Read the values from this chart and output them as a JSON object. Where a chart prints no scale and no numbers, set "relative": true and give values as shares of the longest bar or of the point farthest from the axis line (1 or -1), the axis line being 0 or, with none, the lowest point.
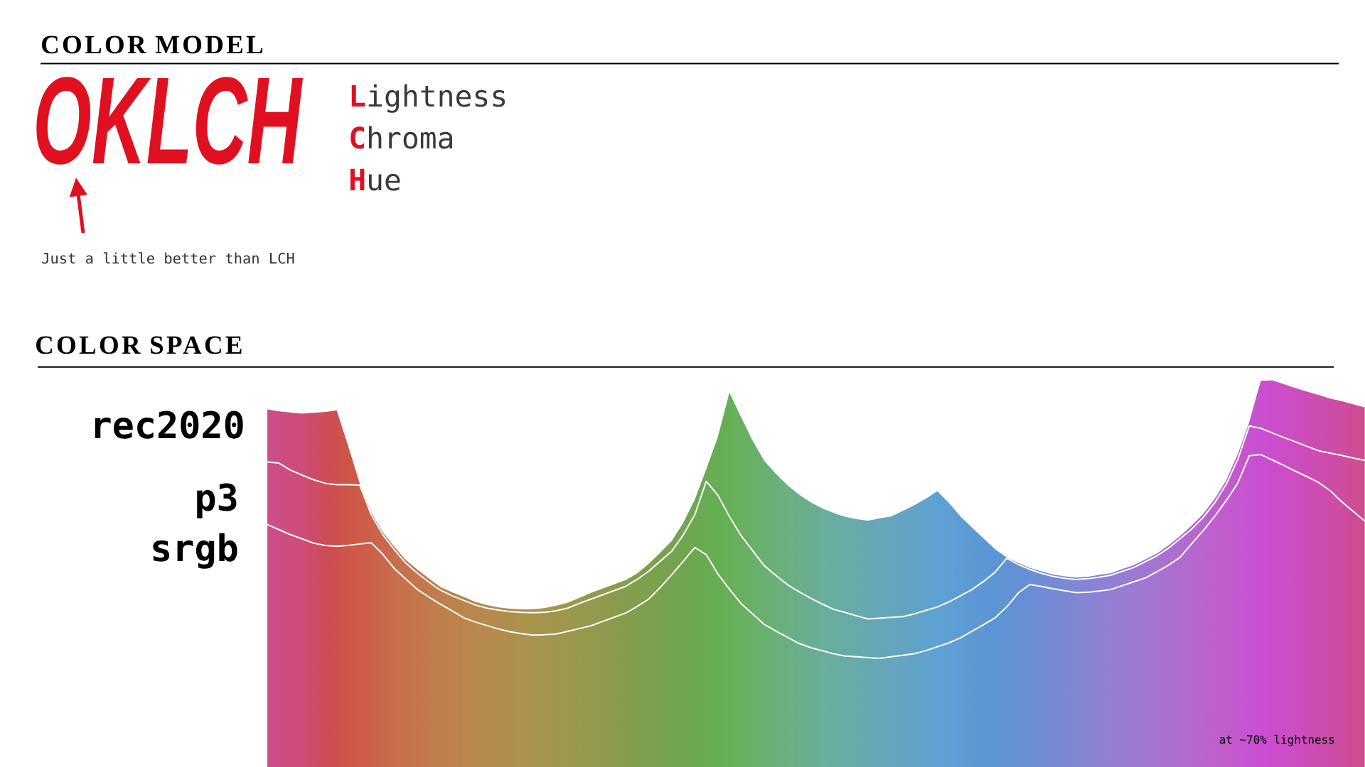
{
  "chart_data": [
    {
      "type": "other",
      "title": "COLOR MODEL",
      "color": "#e01020",
      "annotations": [
        "OKLCH",
        "Just a little better than LCH",
        "**L**ightness",
        "**C**hroma",
        "**H**ue"
      ]
    },
    {
      "type": "area",
      "title": "COLOR SPACE",
      "relative": true,
      "categories": [
        null,
        null,
        null,
        null,
        null,
        null,
        null,
        null,
        null,
        null,
        null,
        null,
        null,
        null,
        null,
        null,
        null,
        null,
        null,
        null,
        null,
        null,
        null,
        null,
        null,
        null,
        null,
        null,
        null,
        null,
        null,
        null,
        null,
        null,
        null,
        null,
        null,
        null,
        null,
        null,
        null,
        null,
        null,
        null,
        null,
        null,
        null,
        null,
        null,
        null,
        null,
        null,
        null,
        null,
        null,
        null,
        null,
        null,
        null,
        null,
        null,
        null,
        null,
        null,
        null,
        null,
        null,
        null,
        null,
        null,
        null,
        null,
        null,
        null,
        null,
        null,
        null,
        null,
        null,
        null,
        null,
        null,
        null,
        null,
        null,
        null,
        null,
        null,
        null,
        null,
        null,
        null,
        null,
        null,
        null,
        null
      ],
      "series": [
        {
          "name": "rec2020",
          "type": "area",
          "colors": [
            "#e8338a",
            "#e83282",
            "#e83178",
            "#e8316c",
            "#e8305a",
            "#e83044",
            "#e83530",
            "#e83e2c",
            "#e8462c",
            "#e64e2c",
            "#e4562d",
            "#e25e2e",
            "#df652e",
            "#dc6b2e",
            "#d9712e",
            "#d6772e",
            "#d27c2f",
            "#ce812f",
            "#ca852f",
            "#c68930",
            "#c28c30",
            "#bd8f30",
            "#b89230",
            "#b39530",
            "#ae9730",
            "#a89a30",
            "#a29c30",
            "#9c9e30",
            "#959f30",
            "#8fa030",
            "#88a230",
            "#82a431",
            "#7ca632",
            "#76a833",
            "#70aa33",
            "#6aad34",
            "#64b035",
            "#5eb436",
            "#58b838",
            "#54bb3a",
            "#55be40",
            "#58bf4c",
            "#5abf58",
            "#5bbf64",
            "#5cbe70",
            "#5cbd7c",
            "#5bbc88",
            "#5abb94",
            "#59baa0",
            "#58b9a8",
            "#57b8b0",
            "#56b6b8",
            "#55b4c0",
            "#53b2c8",
            "#52b0d0",
            "#50aed8",
            "#4eade0",
            "#4cacea",
            "#4aaaf2",
            "#49a6f2",
            "#48a2f2",
            "#489ef2",
            "#489af2",
            "#4898f2",
            "#4c95f2",
            "#5492f2",
            "#5c8ff2",
            "#648cf2",
            "#6c89f2",
            "#7486f2",
            "#7c83f2",
            "#8480f2",
            "#8c7cf2",
            "#9478f2",
            "#9b74f1",
            "#a270f0",
            "#a96cf0",
            "#b068ef",
            "#b763ee",
            "#be5eed",
            "#c558ec",
            "#cc52eb",
            "#d24cea",
            "#d846ea",
            "#dd40ea",
            "#e13aec",
            "#e434ee",
            "#e632e8",
            "#e731e0",
            "#e831d6",
            "#e830cc",
            "#e830c0",
            "#e830b4",
            "#e830a8",
            "#e8309a",
            "#e8318e"
          ],
          "values": [
            0.925,
            0.92,
            0.917,
            0.914,
            0.916,
            0.918,
            0.922,
            0.83,
            0.733,
            0.658,
            0.607,
            0.569,
            0.535,
            0.51,
            0.487,
            0.465,
            0.452,
            0.44,
            0.427,
            0.419,
            0.413,
            0.409,
            0.408,
            0.408,
            0.411,
            0.417,
            0.425,
            0.437,
            0.45,
            0.461,
            0.472,
            0.483,
            0.5,
            0.525,
            0.554,
            0.584,
            0.631,
            0.691,
            0.77,
            0.853,
            0.968,
            0.905,
            0.844,
            0.792,
            0.759,
            0.729,
            0.705,
            0.685,
            0.669,
            0.657,
            0.647,
            0.641,
            0.637,
            0.643,
            0.648,
            0.662,
            0.677,
            0.694,
            0.713,
            0.683,
            0.648,
            0.619,
            0.591,
            0.563,
            0.542,
            0.528,
            0.515,
            0.506,
            0.498,
            0.493,
            0.49,
            0.492,
            0.497,
            0.501,
            0.512,
            0.522,
            0.537,
            0.552,
            0.573,
            0.597,
            0.624,
            0.654,
            0.693,
            0.741,
            0.808,
            0.892,
            0.999,
            1,
            0.99,
            0.98,
            0.971,
            0.962,
            0.953,
            0.946,
            0.938,
            0.93
          ]
        },
        {
          "name": "p3",
          "type": "line",
          "color": "#ffffff",
          "values": [
            0.789,
            0.786,
            0.768,
            0.755,
            0.743,
            0.734,
            0.73,
            0.73,
            0.729,
            0.652,
            0.601,
            0.562,
            0.527,
            0.501,
            0.478,
            0.457,
            0.443,
            0.431,
            0.419,
            0.411,
            0.406,
            0.402,
            0.4,
            0.399,
            0.4,
            0.404,
            0.411,
            0.423,
            0.434,
            0.445,
            0.456,
            0.467,
            0.485,
            0.506,
            0.532,
            0.558,
            0.6,
            0.652,
            0.739,
            0.703,
            0.648,
            0.599,
            0.56,
            0.521,
            0.496,
            0.472,
            0.454,
            0.437,
            0.422,
            0.408,
            0.4,
            0.391,
            0.383,
            0.385,
            0.387,
            0.389,
            0.396,
            0.405,
            0.414,
            0.427,
            0.443,
            0.459,
            0.48,
            0.504,
            0.54,
            0.524,
            0.511,
            0.501,
            0.493,
            0.488,
            0.485,
            0.487,
            0.491,
            0.496,
            0.506,
            0.516,
            0.531,
            0.546,
            0.566,
            0.59,
            0.615,
            0.645,
            0.683,
            0.731,
            0.795,
            0.882,
            0.876,
            0.864,
            0.852,
            0.841,
            0.829,
            0.818,
            0.812,
            0.806,
            0.799,
            0.793
          ]
        },
        {
          "name": "srgb",
          "type": "line",
          "color": "#ffffff",
          "values": [
            0.627,
            0.614,
            0.601,
            0.59,
            0.579,
            0.573,
            0.571,
            0.573,
            0.577,
            0.58,
            0.55,
            0.513,
            0.486,
            0.459,
            0.439,
            0.421,
            0.404,
            0.386,
            0.375,
            0.366,
            0.357,
            0.35,
            0.345,
            0.341,
            0.342,
            0.344,
            0.351,
            0.358,
            0.365,
            0.376,
            0.387,
            0.398,
            0.415,
            0.434,
            0.464,
            0.497,
            0.532,
            0.568,
            0.549,
            0.499,
            0.46,
            0.423,
            0.396,
            0.369,
            0.352,
            0.336,
            0.32,
            0.309,
            0.301,
            0.293,
            0.287,
            0.285,
            0.283,
            0.281,
            0.285,
            0.289,
            0.293,
            0.301,
            0.311,
            0.321,
            0.334,
            0.351,
            0.368,
            0.386,
            0.414,
            0.45,
            0.472,
            0.467,
            0.461,
            0.456,
            0.451,
            0.452,
            0.455,
            0.459,
            0.469,
            0.479,
            0.489,
            0.505,
            0.522,
            0.542,
            0.577,
            0.611,
            0.648,
            0.689,
            0.734,
            0.805,
            0.808,
            0.794,
            0.78,
            0.765,
            0.751,
            0.736,
            0.715,
            0.686,
            0.661,
            0.636
          ]
        }
      ],
      "annotations": [
        "at ~70% lightness"
      ]
    }
  ]
}
